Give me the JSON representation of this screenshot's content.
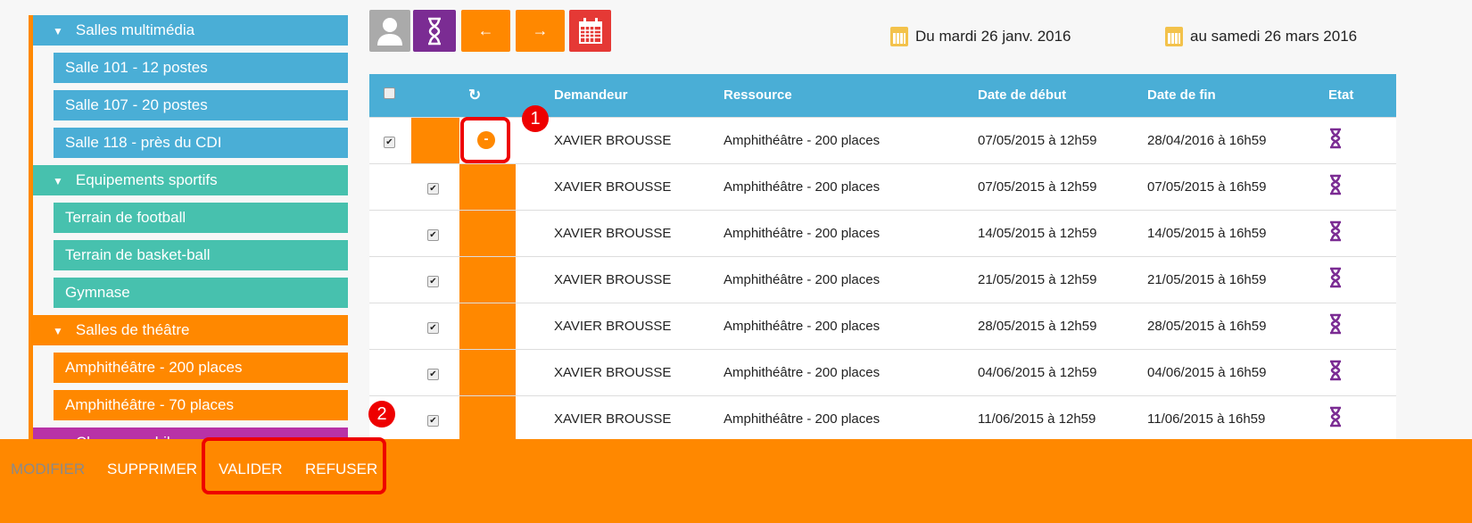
{
  "sidebar": {
    "groups": [
      {
        "label": "Salles multimédia",
        "color": "#4aaed6",
        "items": [
          "Salle 101 - 12 postes",
          "Salle 107 - 20 postes",
          "Salle 118 - près du CDI"
        ]
      },
      {
        "label": "Equipements sportifs",
        "color": "#47c1ae",
        "items": [
          "Terrain de football",
          "Terrain de basket-ball",
          "Gymnase"
        ]
      },
      {
        "label": "Salles de théâtre",
        "color": "#ff8800",
        "items": [
          "Amphithéâtre - 200 places",
          "Amphithéâtre - 70 places"
        ]
      },
      {
        "label": "Classes mobiles",
        "color": "#b832a7",
        "items": []
      }
    ]
  },
  "toolbar": {
    "user_icon": "user-icon",
    "pending_icon": "hourglass-icon",
    "prev": "←",
    "next": "→",
    "calendar_icon": "calendar-icon"
  },
  "dates": {
    "from": "Du mardi 26 janv. 2016",
    "to": "au samedi 26 mars 2016"
  },
  "table": {
    "headers": [
      "Demandeur",
      "Ressource",
      "Date de début",
      "Date de fin",
      "Etat"
    ],
    "rows": [
      {
        "demandeur": "XAVIER BROUSSE",
        "ressource": "Amphithéâtre - 200 places",
        "debut": "07/05/2015 à 12h59",
        "fin": "28/04/2016 à 16h59",
        "checked": true,
        "parent": true,
        "toggle": "-"
      },
      {
        "demandeur": "XAVIER BROUSSE",
        "ressource": "Amphithéâtre - 200 places",
        "debut": "07/05/2015 à 12h59",
        "fin": "07/05/2015 à 16h59",
        "checked": true
      },
      {
        "demandeur": "XAVIER BROUSSE",
        "ressource": "Amphithéâtre - 200 places",
        "debut": "14/05/2015 à 12h59",
        "fin": "14/05/2015 à 16h59",
        "checked": true
      },
      {
        "demandeur": "XAVIER BROUSSE",
        "ressource": "Amphithéâtre - 200 places",
        "debut": "21/05/2015 à 12h59",
        "fin": "21/05/2015 à 16h59",
        "checked": true
      },
      {
        "demandeur": "XAVIER BROUSSE",
        "ressource": "Amphithéâtre - 200 places",
        "debut": "28/05/2015 à 12h59",
        "fin": "28/05/2015 à 16h59",
        "checked": true
      },
      {
        "demandeur": "XAVIER BROUSSE",
        "ressource": "Amphithéâtre - 200 places",
        "debut": "04/06/2015 à 12h59",
        "fin": "04/06/2015 à 16h59",
        "checked": true
      },
      {
        "demandeur": "XAVIER BROUSSE",
        "ressource": "Amphithéâtre - 200 places",
        "debut": "11/06/2015 à 12h59",
        "fin": "11/06/2015 à 16h59",
        "checked": true
      }
    ]
  },
  "footer": {
    "modifier": "MODIFIER",
    "supprimer": "SUPPRIMER",
    "valider": "VALIDER",
    "refuser": "REFUSER"
  },
  "annotations": {
    "one": "1",
    "two": "2"
  }
}
